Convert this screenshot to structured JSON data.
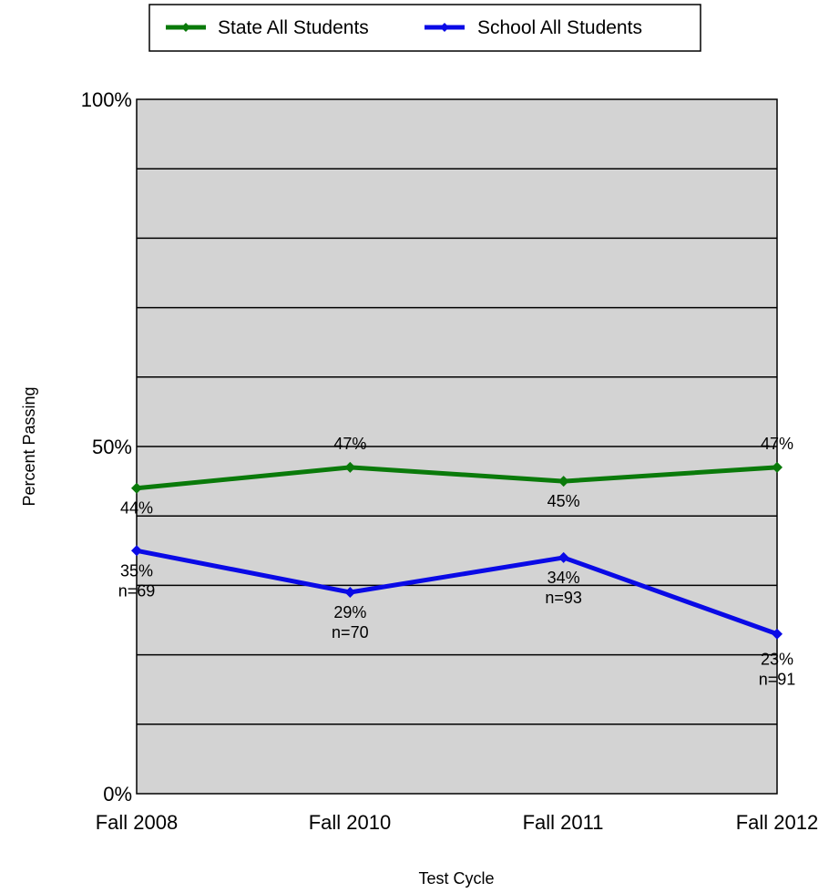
{
  "chart_data": {
    "type": "line",
    "xlabel": "Test Cycle",
    "ylabel": "Percent Passing",
    "categories": [
      "Fall 2008",
      "Fall 2010",
      "Fall 2011",
      "Fall 2012"
    ],
    "ylim": [
      0,
      100
    ],
    "y_tick_labels": [
      "0%",
      "50%",
      "100%"
    ],
    "grid": true,
    "legend_position": "top",
    "plot_background": "#d3d3d3",
    "series": [
      {
        "name": "State All Students",
        "color": "#0a7a0a",
        "values": [
          44,
          47,
          45,
          47
        ],
        "labels": [
          "44%",
          "47%",
          "45%",
          "47%"
        ],
        "n_labels": [
          "",
          "",
          "",
          ""
        ]
      },
      {
        "name": "School All Students",
        "color": "#0a0ae6",
        "values": [
          35,
          29,
          34,
          23
        ],
        "labels": [
          "35%",
          "29%",
          "34%",
          "23%"
        ],
        "n_labels": [
          "n=69",
          "n=70",
          "n=93",
          "n=91"
        ]
      }
    ]
  }
}
